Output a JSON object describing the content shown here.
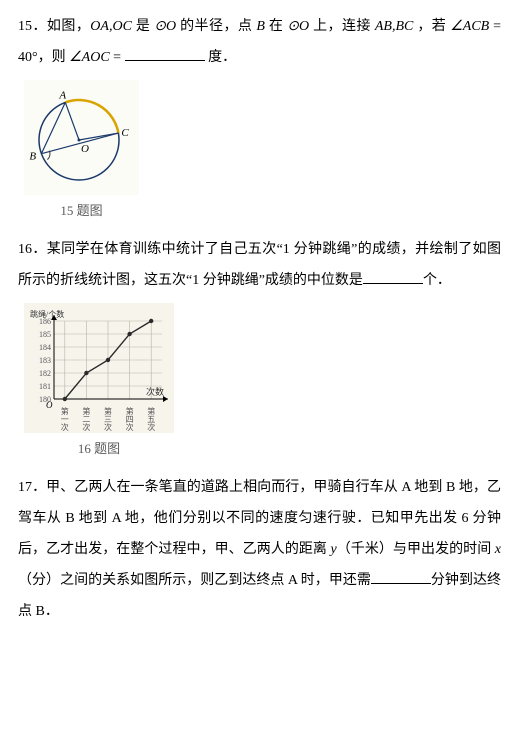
{
  "q15": {
    "number": "15．",
    "text_parts": {
      "p1a": "如图，",
      "oa_oc": "OA,OC",
      "p1b": " 是 ",
      "circ1": "⊙O",
      "p1c": " 的半径，点 ",
      "B": "B",
      "p1d": " 在 ",
      "circ2": "⊙O",
      "p1e": " 上，连接 ",
      "ab_bc": "AB,BC",
      "p1f": " ，若",
      "angle_acb": "∠ACB",
      "eq40": " = 40°",
      "p2a": "，则 ",
      "angle_aoc": "∠AOC",
      "eq": " = ",
      "unit": " 度．"
    },
    "caption": "15 题图",
    "colors": {
      "circle_stroke": "#1a3a6b",
      "arc_color": "#d9a300",
      "bg": "#fcfcf7"
    }
  },
  "q16": {
    "number": "16．",
    "text_parts": {
      "p1": "某同学在体育训练中统计了自己五次“1 分钟跳绳”的成绩，并绘制了如图所示的折线统计图，这五次“1 分钟跳绳”成绩的中位数是",
      "unit": "个．"
    },
    "caption": "16 题图",
    "chart": {
      "type": "line",
      "x_labels": [
        "第一次",
        "第二次",
        "第三次",
        "第四次",
        "第五次"
      ],
      "y_ticks": [
        180,
        181,
        182,
        183,
        184,
        185,
        186
      ],
      "values": [
        180,
        182,
        183,
        185,
        186
      ],
      "axis_x_title": "次数",
      "axis_y_title": "跳绳/个数",
      "grid_color": "#b8b2a8",
      "line_color": "#2a2a2a",
      "bg": "#f7f4ec",
      "point_radius": 2.2
    }
  },
  "q17": {
    "number": "17．",
    "text_parts": {
      "p1": "甲、乙两人在一条笔直的道路上相向而行，甲骑自行车从 A 地到 B 地，乙驾车从 B 地到 A 地，他们分别以不同的速度匀速行驶．已知甲先出发 6 分钟后，乙才出发，在整个过程中，甲、乙两人的距离 ",
      "y": "y",
      "p2": "（千米）与甲出发的时间 ",
      "x": "x",
      "p3": "（分）之间的关系如图所示，则乙到达终点 A 时，甲还需",
      "p4": "分钟到达终点 B．"
    }
  }
}
